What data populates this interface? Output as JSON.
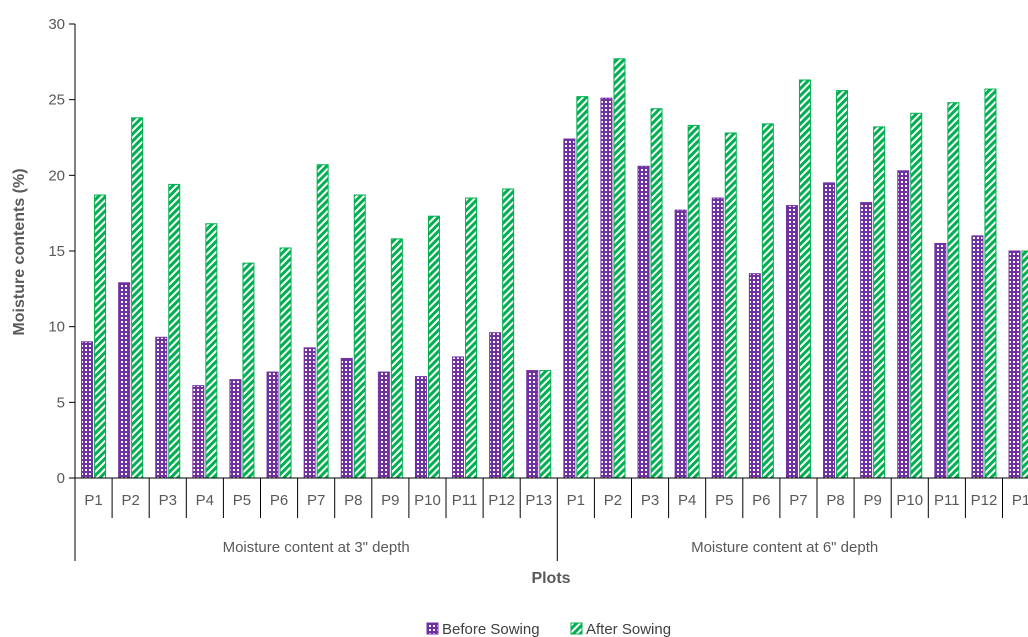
{
  "chart_data": {
    "type": "bar",
    "ylabel": "Moisture contents (%)",
    "xlabel": "Plots",
    "ylim": [
      0,
      30
    ],
    "yticks": [
      0,
      5,
      10,
      15,
      20,
      25,
      30
    ],
    "grid": false,
    "legend_position": "bottom",
    "groups": [
      {
        "label": "Moisture content at 3\" depth",
        "categories": [
          "P1",
          "P2",
          "P3",
          "P4",
          "P5",
          "P6",
          "P7",
          "P8",
          "P9",
          "P10",
          "P11",
          "P12",
          "P13"
        ]
      },
      {
        "label": "Moisture content at 6\" depth",
        "categories": [
          "P1",
          "P2",
          "P3",
          "P4",
          "P5",
          "P6",
          "P7",
          "P8",
          "P9",
          "P10",
          "P11",
          "P12",
          "P1"
        ]
      }
    ],
    "series": [
      {
        "name": "Before Sowing",
        "color": "#7030a0",
        "values": [
          9.0,
          12.9,
          9.3,
          6.1,
          6.5,
          7.0,
          8.6,
          7.9,
          7.0,
          6.7,
          8.0,
          9.6,
          7.1,
          22.4,
          25.1,
          20.6,
          17.7,
          18.5,
          13.5,
          18.0,
          19.5,
          18.2,
          20.3,
          15.5,
          16.0,
          15.0
        ]
      },
      {
        "name": "After Sowing",
        "color": "#00b050",
        "values": [
          18.7,
          23.8,
          19.4,
          16.8,
          14.2,
          15.2,
          20.7,
          18.7,
          15.8,
          17.3,
          18.5,
          19.1,
          7.1,
          25.2,
          27.7,
          24.4,
          23.3,
          22.8,
          23.4,
          26.3,
          25.6,
          23.2,
          24.1,
          24.8,
          25.7,
          15.0
        ]
      }
    ]
  }
}
